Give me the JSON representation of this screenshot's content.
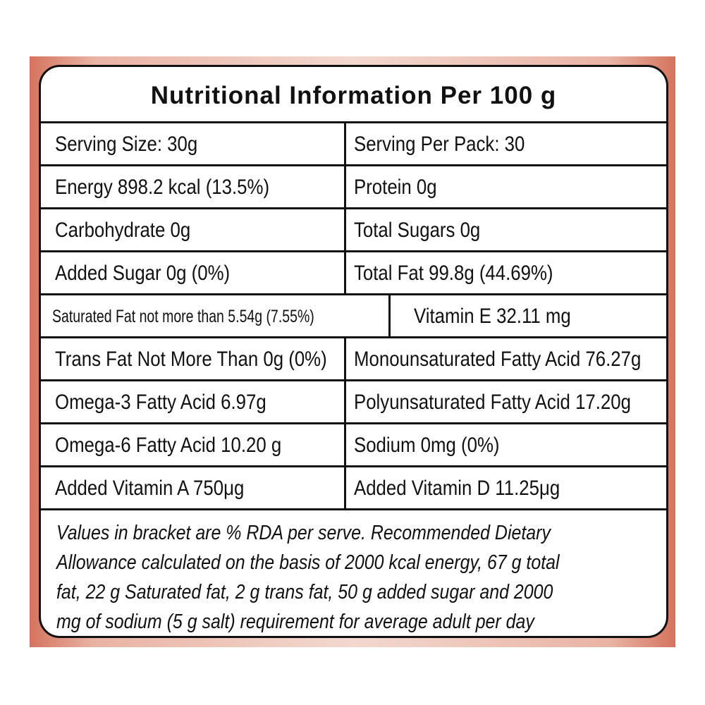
{
  "header": {
    "title": "Nutritional Information Per 100 g"
  },
  "table": {
    "rows": [
      [
        "Serving Size: 30g",
        "Serving Per Pack: 30"
      ],
      [
        "Energy 898.2 kcal (13.5%)",
        "Protein 0g"
      ],
      [
        "Carbohydrate 0g",
        "Total Sugars 0g"
      ],
      [
        "Added Sugar 0g (0%)",
        "Total Fat 99.8g (44.69%)"
      ],
      [
        "Saturated Fat not more than 5.54g (7.55%)",
        "Vitamin E 32.11 mg"
      ],
      [
        "Trans Fat Not More Than 0g (0%)",
        "Monounsaturated Fatty Acid 76.27g"
      ],
      [
        "Omega-3 Fatty Acid 6.97g",
        "Polyunsaturated Fatty Acid 17.20g"
      ],
      [
        "Omega-6 Fatty Acid 10.20 g",
        "Sodium 0mg (0%)"
      ],
      [
        "Added Vitamin A 750μg",
        "Added Vitamin D 11.25μg"
      ]
    ]
  },
  "footer": {
    "lines": [
      "Values in bracket are % RDA per serve. Recommended Dietary",
      "Allowance calculated on the basis of 2000 kcal energy, 67 g total",
      "fat, 22 g Saturated fat, 2 g trans fat, 50 g added sugar and 2000",
      "mg of sodium (5 g salt) requirement for average adult per day"
    ]
  }
}
